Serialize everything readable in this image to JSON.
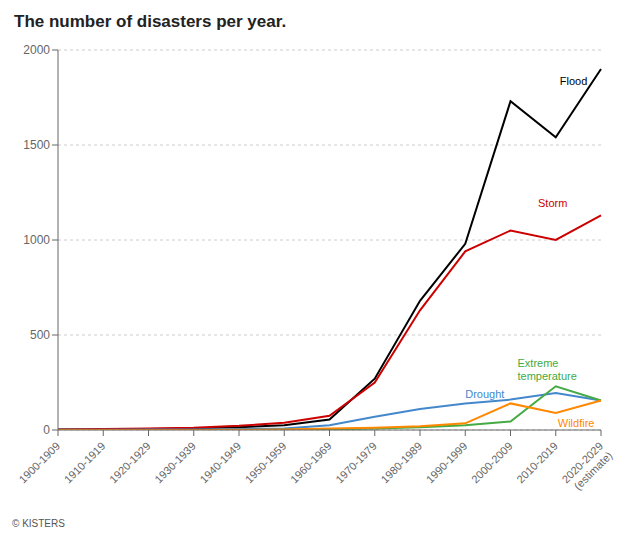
{
  "chart_data": {
    "type": "line",
    "title": "The number of disasters per year.",
    "categories": [
      "1900-1909",
      "1910-1919",
      "1920-1929",
      "1930-1939",
      "1940-1949",
      "1950-1959",
      "1960-1969",
      "1970-1979",
      "1980-1989",
      "1990-1999",
      "2000-2009",
      "2010-2019",
      "2020-2029\n(estimate)"
    ],
    "series": [
      {
        "name": "Flood",
        "color": "#000000",
        "values": [
          3,
          3,
          5,
          8,
          15,
          25,
          55,
          270,
          680,
          980,
          1730,
          1540,
          1900
        ]
      },
      {
        "name": "Storm",
        "color": "#cc0000",
        "values": [
          3,
          5,
          8,
          12,
          22,
          38,
          75,
          250,
          630,
          940,
          1050,
          1000,
          1130
        ]
      },
      {
        "name": "Drought",
        "color": "#4488cc",
        "values": [
          1,
          1,
          2,
          3,
          5,
          8,
          25,
          70,
          110,
          140,
          160,
          195,
          155
        ]
      },
      {
        "name": "Extreme\ntemperature",
        "color": "#44aa44",
        "values": [
          0,
          0,
          0,
          0,
          0,
          1,
          3,
          8,
          15,
          25,
          45,
          230,
          155
        ]
      },
      {
        "name": "Wildfire",
        "color": "#ff8800",
        "values": [
          0,
          0,
          0,
          0,
          1,
          3,
          8,
          12,
          20,
          35,
          140,
          90,
          155
        ]
      }
    ],
    "ylim": [
      0,
      2000
    ],
    "yticks": [
      0,
      500,
      1000,
      1500,
      2000
    ],
    "grid": true,
    "annotations": [
      {
        "text": "Flood",
        "color": "#000000"
      },
      {
        "text": "Storm",
        "color": "#cc0000"
      },
      {
        "text": "Drought",
        "color": "#4488cc"
      },
      {
        "text": "Extreme\ntemperature",
        "color": "#44aa44"
      },
      {
        "text": "Wildfire",
        "color": "#ff8800"
      },
      {
        "text": "© KISTERS",
        "color": "#555555"
      }
    ]
  }
}
